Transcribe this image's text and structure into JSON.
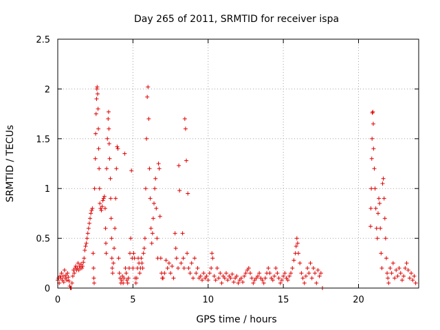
{
  "chart_data": {
    "type": "scatter",
    "title": "Day 265 of 2011, SRMTID for receiver ispa",
    "xlabel": "GPS time / hours",
    "ylabel": "SRMTID / TECUs",
    "xlim": [
      0,
      24
    ],
    "ylim": [
      0,
      2.5
    ],
    "xticks": [
      0,
      5,
      10,
      15,
      20
    ],
    "xtick_labels": [
      "0",
      "5",
      "10",
      "15",
      "20"
    ],
    "yticks": [
      0,
      0.5,
      1,
      1.5,
      2,
      2.5
    ],
    "ytick_labels": [
      "0",
      "0.5",
      "1",
      "1.5",
      "2",
      "2.5"
    ],
    "grid": true,
    "marker": "+",
    "color": "#e00000",
    "series": [
      {
        "name": "SRMTID",
        "points": [
          [
            0.0,
            0.08
          ],
          [
            0.05,
            0.1
          ],
          [
            0.1,
            0.05
          ],
          [
            0.15,
            0.12
          ],
          [
            0.2,
            0.1
          ],
          [
            0.25,
            0.15
          ],
          [
            0.3,
            0.08
          ],
          [
            0.35,
            0.12
          ],
          [
            0.4,
            0.06
          ],
          [
            0.45,
            0.18
          ],
          [
            0.5,
            0.1
          ],
          [
            0.55,
            0.13
          ],
          [
            0.6,
            0.08
          ],
          [
            0.65,
            0.15
          ],
          [
            0.7,
            0.11
          ],
          [
            0.75,
            0.07
          ],
          [
            0.8,
            0.02
          ],
          [
            0.85,
            0.0
          ],
          [
            0.9,
            0.0
          ],
          [
            0.95,
            0.05
          ],
          [
            1.0,
            0.12
          ],
          [
            1.05,
            0.18
          ],
          [
            1.1,
            0.15
          ],
          [
            1.15,
            0.2
          ],
          [
            1.2,
            0.22
          ],
          [
            1.25,
            0.18
          ],
          [
            1.3,
            0.2
          ],
          [
            1.35,
            0.25
          ],
          [
            1.4,
            0.18
          ],
          [
            1.45,
            0.22
          ],
          [
            1.5,
            0.2
          ],
          [
            1.55,
            0.24
          ],
          [
            1.6,
            0.2
          ],
          [
            1.65,
            0.22
          ],
          [
            1.7,
            0.26
          ],
          [
            1.75,
            0.3
          ],
          [
            1.8,
            0.38
          ],
          [
            1.85,
            0.42
          ],
          [
            1.9,
            0.45
          ],
          [
            1.95,
            0.5
          ],
          [
            2.0,
            0.55
          ],
          [
            2.05,
            0.6
          ],
          [
            2.1,
            0.65
          ],
          [
            2.15,
            0.7
          ],
          [
            2.2,
            0.75
          ],
          [
            2.25,
            0.78
          ],
          [
            2.3,
            0.8
          ],
          [
            2.35,
            0.35
          ],
          [
            2.38,
            0.2
          ],
          [
            2.4,
            0.1
          ],
          [
            2.42,
            0.05
          ],
          [
            2.45,
            1.0
          ],
          [
            2.5,
            1.3
          ],
          [
            2.52,
            1.55
          ],
          [
            2.55,
            1.75
          ],
          [
            2.58,
            1.9
          ],
          [
            2.6,
            2.0
          ],
          [
            2.62,
            2.02
          ],
          [
            2.65,
            1.95
          ],
          [
            2.68,
            1.8
          ],
          [
            2.7,
            1.6
          ],
          [
            2.72,
            1.4
          ],
          [
            2.75,
            1.2
          ],
          [
            2.78,
            1.0
          ],
          [
            2.8,
            0.85
          ],
          [
            2.85,
            0.8
          ],
          [
            2.9,
            0.78
          ],
          [
            2.95,
            0.82
          ],
          [
            3.0,
            0.88
          ],
          [
            3.05,
            0.9
          ],
          [
            3.1,
            0.92
          ],
          [
            3.15,
            0.8
          ],
          [
            3.18,
            0.6
          ],
          [
            3.2,
            0.45
          ],
          [
            3.22,
            0.35
          ],
          [
            3.25,
            1.2
          ],
          [
            3.3,
            1.5
          ],
          [
            3.35,
            1.7
          ],
          [
            3.38,
            1.77
          ],
          [
            3.4,
            1.6
          ],
          [
            3.42,
            1.45
          ],
          [
            3.45,
            1.3
          ],
          [
            3.5,
            1.1
          ],
          [
            3.52,
            0.9
          ],
          [
            3.55,
            0.7
          ],
          [
            3.58,
            0.5
          ],
          [
            3.6,
            0.3
          ],
          [
            3.62,
            0.2
          ],
          [
            3.65,
            0.15
          ],
          [
            3.7,
            0.25
          ],
          [
            3.75,
            0.4
          ],
          [
            3.8,
            0.6
          ],
          [
            3.85,
            0.9
          ],
          [
            3.9,
            1.2
          ],
          [
            3.95,
            1.42
          ],
          [
            4.0,
            1.4
          ],
          [
            4.05,
            0.3
          ],
          [
            4.1,
            0.15
          ],
          [
            4.15,
            0.1
          ],
          [
            4.2,
            0.05
          ],
          [
            4.25,
            0.08
          ],
          [
            4.3,
            0.12
          ],
          [
            4.35,
            0.05
          ],
          [
            4.4,
            0.1
          ],
          [
            4.45,
            1.35
          ],
          [
            4.5,
            0.2
          ],
          [
            4.55,
            0.15
          ],
          [
            4.6,
            0.08
          ],
          [
            4.65,
            0.05
          ],
          [
            4.7,
            0.1
          ],
          [
            4.75,
            0.2
          ],
          [
            4.8,
            0.35
          ],
          [
            4.85,
            0.5
          ],
          [
            4.9,
            1.18
          ],
          [
            4.95,
            0.3
          ],
          [
            5.0,
            0.2
          ],
          [
            5.05,
            0.35
          ],
          [
            5.1,
            0.3
          ],
          [
            5.15,
            0.1
          ],
          [
            5.2,
            0.05
          ],
          [
            5.25,
            0.1
          ],
          [
            5.3,
            0.2
          ],
          [
            5.35,
            0.3
          ],
          [
            5.4,
            0.25
          ],
          [
            5.45,
            0.15
          ],
          [
            5.5,
            0.2
          ],
          [
            5.55,
            0.3
          ],
          [
            5.6,
            0.25
          ],
          [
            5.65,
            0.2
          ],
          [
            5.7,
            0.35
          ],
          [
            5.75,
            0.4
          ],
          [
            5.8,
            0.5
          ],
          [
            5.85,
            1.0
          ],
          [
            5.9,
            1.5
          ],
          [
            5.95,
            1.92
          ],
          [
            6.0,
            2.02
          ],
          [
            6.05,
            1.7
          ],
          [
            6.1,
            1.2
          ],
          [
            6.15,
            0.9
          ],
          [
            6.2,
            0.6
          ],
          [
            6.25,
            0.45
          ],
          [
            6.3,
            0.55
          ],
          [
            6.35,
            0.7
          ],
          [
            6.4,
            0.85
          ],
          [
            6.45,
            1.0
          ],
          [
            6.5,
            1.1
          ],
          [
            6.55,
            0.8
          ],
          [
            6.6,
            0.5
          ],
          [
            6.65,
            0.3
          ],
          [
            6.7,
            1.25
          ],
          [
            6.75,
            1.2
          ],
          [
            6.8,
            0.72
          ],
          [
            6.85,
            0.3
          ],
          [
            6.9,
            0.15
          ],
          [
            6.95,
            0.1
          ],
          [
            7.0,
            0.1
          ],
          [
            7.1,
            0.15
          ],
          [
            7.2,
            0.28
          ],
          [
            7.3,
            0.2
          ],
          [
            7.4,
            0.25
          ],
          [
            7.5,
            0.15
          ],
          [
            7.6,
            0.22
          ],
          [
            7.7,
            0.1
          ],
          [
            7.8,
            0.55
          ],
          [
            7.85,
            0.4
          ],
          [
            7.9,
            0.3
          ],
          [
            8.0,
            0.2
          ],
          [
            8.05,
            1.23
          ],
          [
            8.1,
            0.98
          ],
          [
            8.2,
            0.25
          ],
          [
            8.3,
            0.55
          ],
          [
            8.35,
            0.3
          ],
          [
            8.4,
            0.2
          ],
          [
            8.45,
            1.7
          ],
          [
            8.5,
            1.6
          ],
          [
            8.55,
            1.28
          ],
          [
            8.6,
            0.35
          ],
          [
            8.65,
            0.95
          ],
          [
            8.7,
            0.2
          ],
          [
            8.8,
            0.15
          ],
          [
            8.9,
            0.25
          ],
          [
            9.0,
            0.1
          ],
          [
            9.1,
            0.3
          ],
          [
            9.2,
            0.15
          ],
          [
            9.3,
            0.2
          ],
          [
            9.4,
            0.1
          ],
          [
            9.5,
            0.12
          ],
          [
            9.6,
            0.08
          ],
          [
            9.7,
            0.15
          ],
          [
            9.8,
            0.1
          ],
          [
            9.9,
            0.12
          ],
          [
            10.0,
            0.08
          ],
          [
            10.1,
            0.15
          ],
          [
            10.2,
            0.2
          ],
          [
            10.25,
            0.35
          ],
          [
            10.3,
            0.3
          ],
          [
            10.4,
            0.12
          ],
          [
            10.5,
            0.08
          ],
          [
            10.6,
            0.2
          ],
          [
            10.7,
            0.1
          ],
          [
            10.8,
            0.15
          ],
          [
            10.9,
            0.05
          ],
          [
            11.0,
            0.12
          ],
          [
            11.1,
            0.1
          ],
          [
            11.2,
            0.15
          ],
          [
            11.3,
            0.08
          ],
          [
            11.4,
            0.12
          ],
          [
            11.5,
            0.1
          ],
          [
            11.6,
            0.14
          ],
          [
            11.7,
            0.06
          ],
          [
            11.8,
            0.1
          ],
          [
            11.9,
            0.12
          ],
          [
            12.0,
            0.05
          ],
          [
            12.1,
            0.08
          ],
          [
            12.2,
            0.1
          ],
          [
            12.3,
            0.06
          ],
          [
            12.4,
            0.12
          ],
          [
            12.5,
            0.15
          ],
          [
            12.6,
            0.18
          ],
          [
            12.7,
            0.2
          ],
          [
            12.8,
            0.15
          ],
          [
            12.9,
            0.1
          ],
          [
            13.0,
            0.05
          ],
          [
            13.1,
            0.08
          ],
          [
            13.2,
            0.1
          ],
          [
            13.3,
            0.12
          ],
          [
            13.4,
            0.15
          ],
          [
            13.5,
            0.1
          ],
          [
            13.6,
            0.08
          ],
          [
            13.7,
            0.05
          ],
          [
            13.8,
            0.1
          ],
          [
            13.9,
            0.15
          ],
          [
            14.0,
            0.2
          ],
          [
            14.1,
            0.15
          ],
          [
            14.2,
            0.1
          ],
          [
            14.3,
            0.08
          ],
          [
            14.4,
            0.12
          ],
          [
            14.5,
            0.2
          ],
          [
            14.6,
            0.15
          ],
          [
            14.7,
            0.1
          ],
          [
            14.8,
            0.05
          ],
          [
            14.9,
            0.08
          ],
          [
            15.0,
            0.12
          ],
          [
            15.1,
            0.15
          ],
          [
            15.2,
            0.1
          ],
          [
            15.3,
            0.08
          ],
          [
            15.4,
            0.12
          ],
          [
            15.5,
            0.15
          ],
          [
            15.6,
            0.2
          ],
          [
            15.7,
            0.28
          ],
          [
            15.8,
            0.35
          ],
          [
            15.85,
            0.42
          ],
          [
            15.9,
            0.5
          ],
          [
            15.95,
            0.45
          ],
          [
            16.0,
            0.35
          ],
          [
            16.1,
            0.25
          ],
          [
            16.2,
            0.15
          ],
          [
            16.3,
            0.1
          ],
          [
            16.4,
            0.05
          ],
          [
            16.5,
            0.12
          ],
          [
            16.6,
            0.2
          ],
          [
            16.7,
            0.15
          ],
          [
            16.8,
            0.25
          ],
          [
            16.9,
            0.1
          ],
          [
            17.0,
            0.2
          ],
          [
            17.1,
            0.15
          ],
          [
            17.2,
            0.05
          ],
          [
            17.3,
            0.18
          ],
          [
            17.4,
            0.12
          ],
          [
            17.5,
            0.15
          ],
          [
            17.6,
            0.0
          ],
          [
            20.8,
            0.62
          ],
          [
            20.82,
            0.8
          ],
          [
            20.85,
            1.0
          ],
          [
            20.88,
            1.3
          ],
          [
            20.9,
            1.5
          ],
          [
            20.92,
            1.76
          ],
          [
            20.95,
            1.77
          ],
          [
            20.98,
            1.65
          ],
          [
            21.0,
            1.4
          ],
          [
            21.05,
            1.2
          ],
          [
            21.1,
            1.0
          ],
          [
            21.15,
            0.8
          ],
          [
            21.2,
            0.6
          ],
          [
            21.25,
            0.5
          ],
          [
            21.3,
            0.75
          ],
          [
            21.35,
            0.9
          ],
          [
            21.4,
            0.85
          ],
          [
            21.45,
            0.6
          ],
          [
            21.5,
            0.35
          ],
          [
            21.55,
            0.2
          ],
          [
            21.6,
            1.05
          ],
          [
            21.65,
            1.1
          ],
          [
            21.7,
            0.9
          ],
          [
            21.75,
            0.7
          ],
          [
            21.8,
            0.5
          ],
          [
            21.85,
            0.3
          ],
          [
            21.9,
            0.15
          ],
          [
            21.95,
            0.1
          ],
          [
            22.0,
            0.05
          ],
          [
            22.1,
            0.2
          ],
          [
            22.2,
            0.15
          ],
          [
            22.3,
            0.25
          ],
          [
            22.4,
            0.1
          ],
          [
            22.5,
            0.18
          ],
          [
            22.6,
            0.12
          ],
          [
            22.7,
            0.2
          ],
          [
            22.8,
            0.15
          ],
          [
            22.9,
            0.08
          ],
          [
            23.0,
            0.12
          ],
          [
            23.1,
            0.2
          ],
          [
            23.2,
            0.25
          ],
          [
            23.3,
            0.18
          ],
          [
            23.4,
            0.1
          ],
          [
            23.5,
            0.15
          ],
          [
            23.6,
            0.08
          ],
          [
            23.7,
            0.12
          ],
          [
            23.8,
            0.05
          ]
        ]
      }
    ]
  }
}
